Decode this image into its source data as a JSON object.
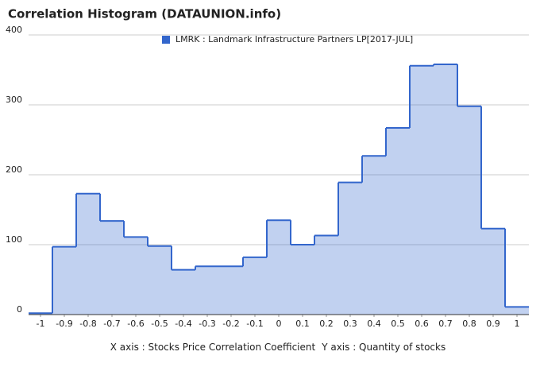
{
  "chart_data": {
    "type": "histogram",
    "title": "Correlation Histogram (DATAUNION.info)",
    "legend": "LMRK : Landmark Infrastructure Partners LP[2017-JUL]",
    "color": "#3366cc",
    "x_label": "X axis : Stocks Price Correlation Coefficient",
    "y_label": "Y axis : Quantity of stocks",
    "bins": [
      -1.05,
      -0.95,
      -0.85,
      -0.75,
      -0.65,
      -0.55,
      -0.45,
      -0.35,
      -0.25,
      -0.15,
      -0.05,
      0.05,
      0.15,
      0.25,
      0.35,
      0.45,
      0.55,
      0.65,
      0.75,
      0.85,
      0.95,
      1.05
    ],
    "values": [
      2,
      97,
      173,
      134,
      111,
      98,
      64,
      69,
      69,
      82,
      135,
      100,
      113,
      189,
      227,
      267,
      356,
      358,
      298,
      123,
      11
    ],
    "xlim": [
      -1.05,
      1.05
    ],
    "xticks": [
      -1,
      -0.9,
      -0.8,
      -0.7,
      -0.6,
      -0.5,
      -0.4,
      -0.3,
      -0.2,
      -0.1,
      0,
      0.1,
      0.2,
      0.3,
      0.4,
      0.5,
      0.6,
      0.7,
      0.8,
      0.9,
      1
    ],
    "ylim": [
      0,
      400
    ],
    "yticks": [
      0,
      100,
      200,
      300,
      400
    ],
    "grid": true
  }
}
